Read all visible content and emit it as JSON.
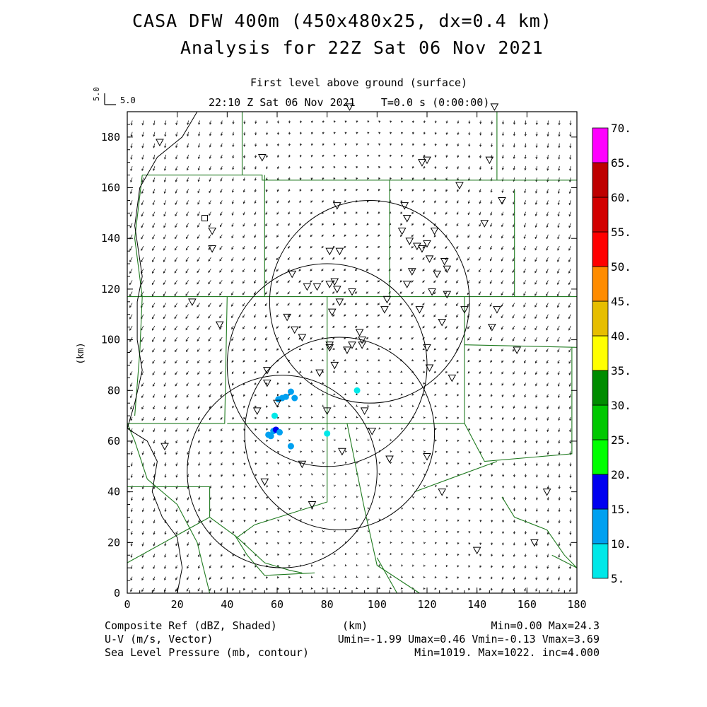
{
  "header": {
    "title_line1": "CASA DFW 400m (450x480x25, dx=0.4 km)",
    "title_line2": "Analysis for 22Z Sat 06 Nov 2021",
    "level": "First level above ground (surface)",
    "time": "22:10 Z Sat 06 Nov 2021    T=0.0 s (0:00:00)",
    "vector_scale_label": "5.0",
    "vector_scale_vertical": "5.0"
  },
  "footer": {
    "line1_left": "Composite Ref (dBZ, Shaded)",
    "line1_center": "(km)",
    "line1_right": "Min=0.00 Max=24.3",
    "line2_left": "U-V (m/s, Vector)",
    "line2_right": "Umin=-1.99 Umax=0.46 Vmin=-0.13 Vmax=3.69",
    "line3_left": "Sea Level Pressure (mb, contour)",
    "line3_right": "Min=1019. Max=1022. inc=4.000"
  },
  "chart_data": {
    "type": "heatmap",
    "xlabel": "(km)",
    "ylabel": "(km)",
    "xlim": [
      0,
      180
    ],
    "ylim": [
      0,
      190
    ],
    "xticks": [
      "0",
      "20",
      "40",
      "60",
      "80",
      "100",
      "120",
      "140",
      "160",
      "180"
    ],
    "yticks": [
      "0",
      "20",
      "40",
      "60",
      "80",
      "100",
      "120",
      "140",
      "160",
      "180"
    ],
    "colorbar": {
      "labels": [
        "5.",
        "10.",
        "15.",
        "20.",
        "25.",
        "30.",
        "35.",
        "40.",
        "45.",
        "50.",
        "55.",
        "60.",
        "65.",
        "70."
      ],
      "colors": [
        "#00e8e8",
        "#00a0f0",
        "#0000f0",
        "#00ff00",
        "#00c800",
        "#008c00",
        "#ffff00",
        "#e6be00",
        "#ff8c00",
        "#ff0000",
        "#d20000",
        "#be0000",
        "#ff00ff"
      ]
    },
    "radar_rings": [
      {
        "center": [
          62,
          48
        ],
        "radius": 38
      },
      {
        "center": [
          80,
          90
        ],
        "radius": 40
      },
      {
        "center": [
          97,
          115
        ],
        "radius": 40
      },
      {
        "center": [
          85,
          63
        ],
        "radius": 38
      }
    ],
    "stations": [
      [
        13,
        178
      ],
      [
        54,
        172
      ],
      [
        89,
        192
      ],
      [
        118,
        170
      ],
      [
        120,
        171
      ],
      [
        133,
        161
      ],
      [
        145,
        171
      ],
      [
        150,
        155
      ],
      [
        84,
        153
      ],
      [
        111,
        153
      ],
      [
        112,
        148
      ],
      [
        110,
        143
      ],
      [
        113,
        139
      ],
      [
        120,
        138
      ],
      [
        123,
        143
      ],
      [
        143,
        146
      ],
      [
        34,
        143
      ],
      [
        34,
        136
      ],
      [
        81,
        135
      ],
      [
        85,
        135
      ],
      [
        116,
        137
      ],
      [
        118,
        136
      ],
      [
        121,
        132
      ],
      [
        114,
        127
      ],
      [
        124,
        126
      ],
      [
        127,
        131
      ],
      [
        128,
        128
      ],
      [
        66,
        126
      ],
      [
        72,
        121
      ],
      [
        76,
        121
      ],
      [
        81,
        122
      ],
      [
        83,
        123
      ],
      [
        84,
        120
      ],
      [
        90,
        119
      ],
      [
        112,
        122
      ],
      [
        104,
        116
      ],
      [
        122,
        119
      ],
      [
        128,
        118
      ],
      [
        85,
        115
      ],
      [
        82,
        111
      ],
      [
        103,
        112
      ],
      [
        117,
        112
      ],
      [
        135,
        112
      ],
      [
        148,
        112
      ],
      [
        26,
        115
      ],
      [
        37,
        106
      ],
      [
        64,
        109
      ],
      [
        67,
        104
      ],
      [
        93,
        103
      ],
      [
        94,
        100
      ],
      [
        94,
        98
      ],
      [
        90,
        98
      ],
      [
        88,
        96
      ],
      [
        81,
        97
      ],
      [
        81,
        98
      ],
      [
        70,
        101
      ],
      [
        126,
        107
      ],
      [
        120,
        97
      ],
      [
        146,
        105
      ],
      [
        156,
        96
      ],
      [
        83,
        90
      ],
      [
        121,
        89
      ],
      [
        130,
        85
      ],
      [
        56,
        88
      ],
      [
        56,
        83
      ],
      [
        77,
        87
      ],
      [
        60,
        75
      ],
      [
        80,
        72
      ],
      [
        95,
        72
      ],
      [
        52,
        72
      ],
      [
        98,
        64
      ],
      [
        15,
        58
      ],
      [
        86,
        56
      ],
      [
        105,
        53
      ],
      [
        120,
        54
      ],
      [
        70,
        51
      ],
      [
        55,
        44
      ],
      [
        126,
        40
      ],
      [
        168,
        40
      ],
      [
        74,
        35
      ],
      [
        140,
        17
      ],
      [
        163,
        20
      ],
      [
        147,
        192
      ]
    ],
    "square_stations": [
      [
        31,
        148
      ]
    ],
    "echoes": [
      {
        "x": 60.5,
        "y": 76.5,
        "dbz": 14
      },
      {
        "x": 63.5,
        "y": 77.5,
        "dbz": 12
      },
      {
        "x": 65.5,
        "y": 79.5,
        "dbz": 10
      },
      {
        "x": 67,
        "y": 77,
        "dbz": 12
      },
      {
        "x": 62,
        "y": 77,
        "dbz": 12
      },
      {
        "x": 59,
        "y": 70,
        "dbz": 8
      },
      {
        "x": 58.5,
        "y": 64,
        "dbz": 14
      },
      {
        "x": 59.5,
        "y": 64.5,
        "dbz": 16
      },
      {
        "x": 57.5,
        "y": 62,
        "dbz": 12
      },
      {
        "x": 61,
        "y": 63.5,
        "dbz": 12
      },
      {
        "x": 56.5,
        "y": 62.5,
        "dbz": 10
      },
      {
        "x": 65.5,
        "y": 58,
        "dbz": 12
      },
      {
        "x": 92,
        "y": 80,
        "dbz": 8
      },
      {
        "x": 80,
        "y": 63,
        "dbz": 8
      }
    ]
  }
}
